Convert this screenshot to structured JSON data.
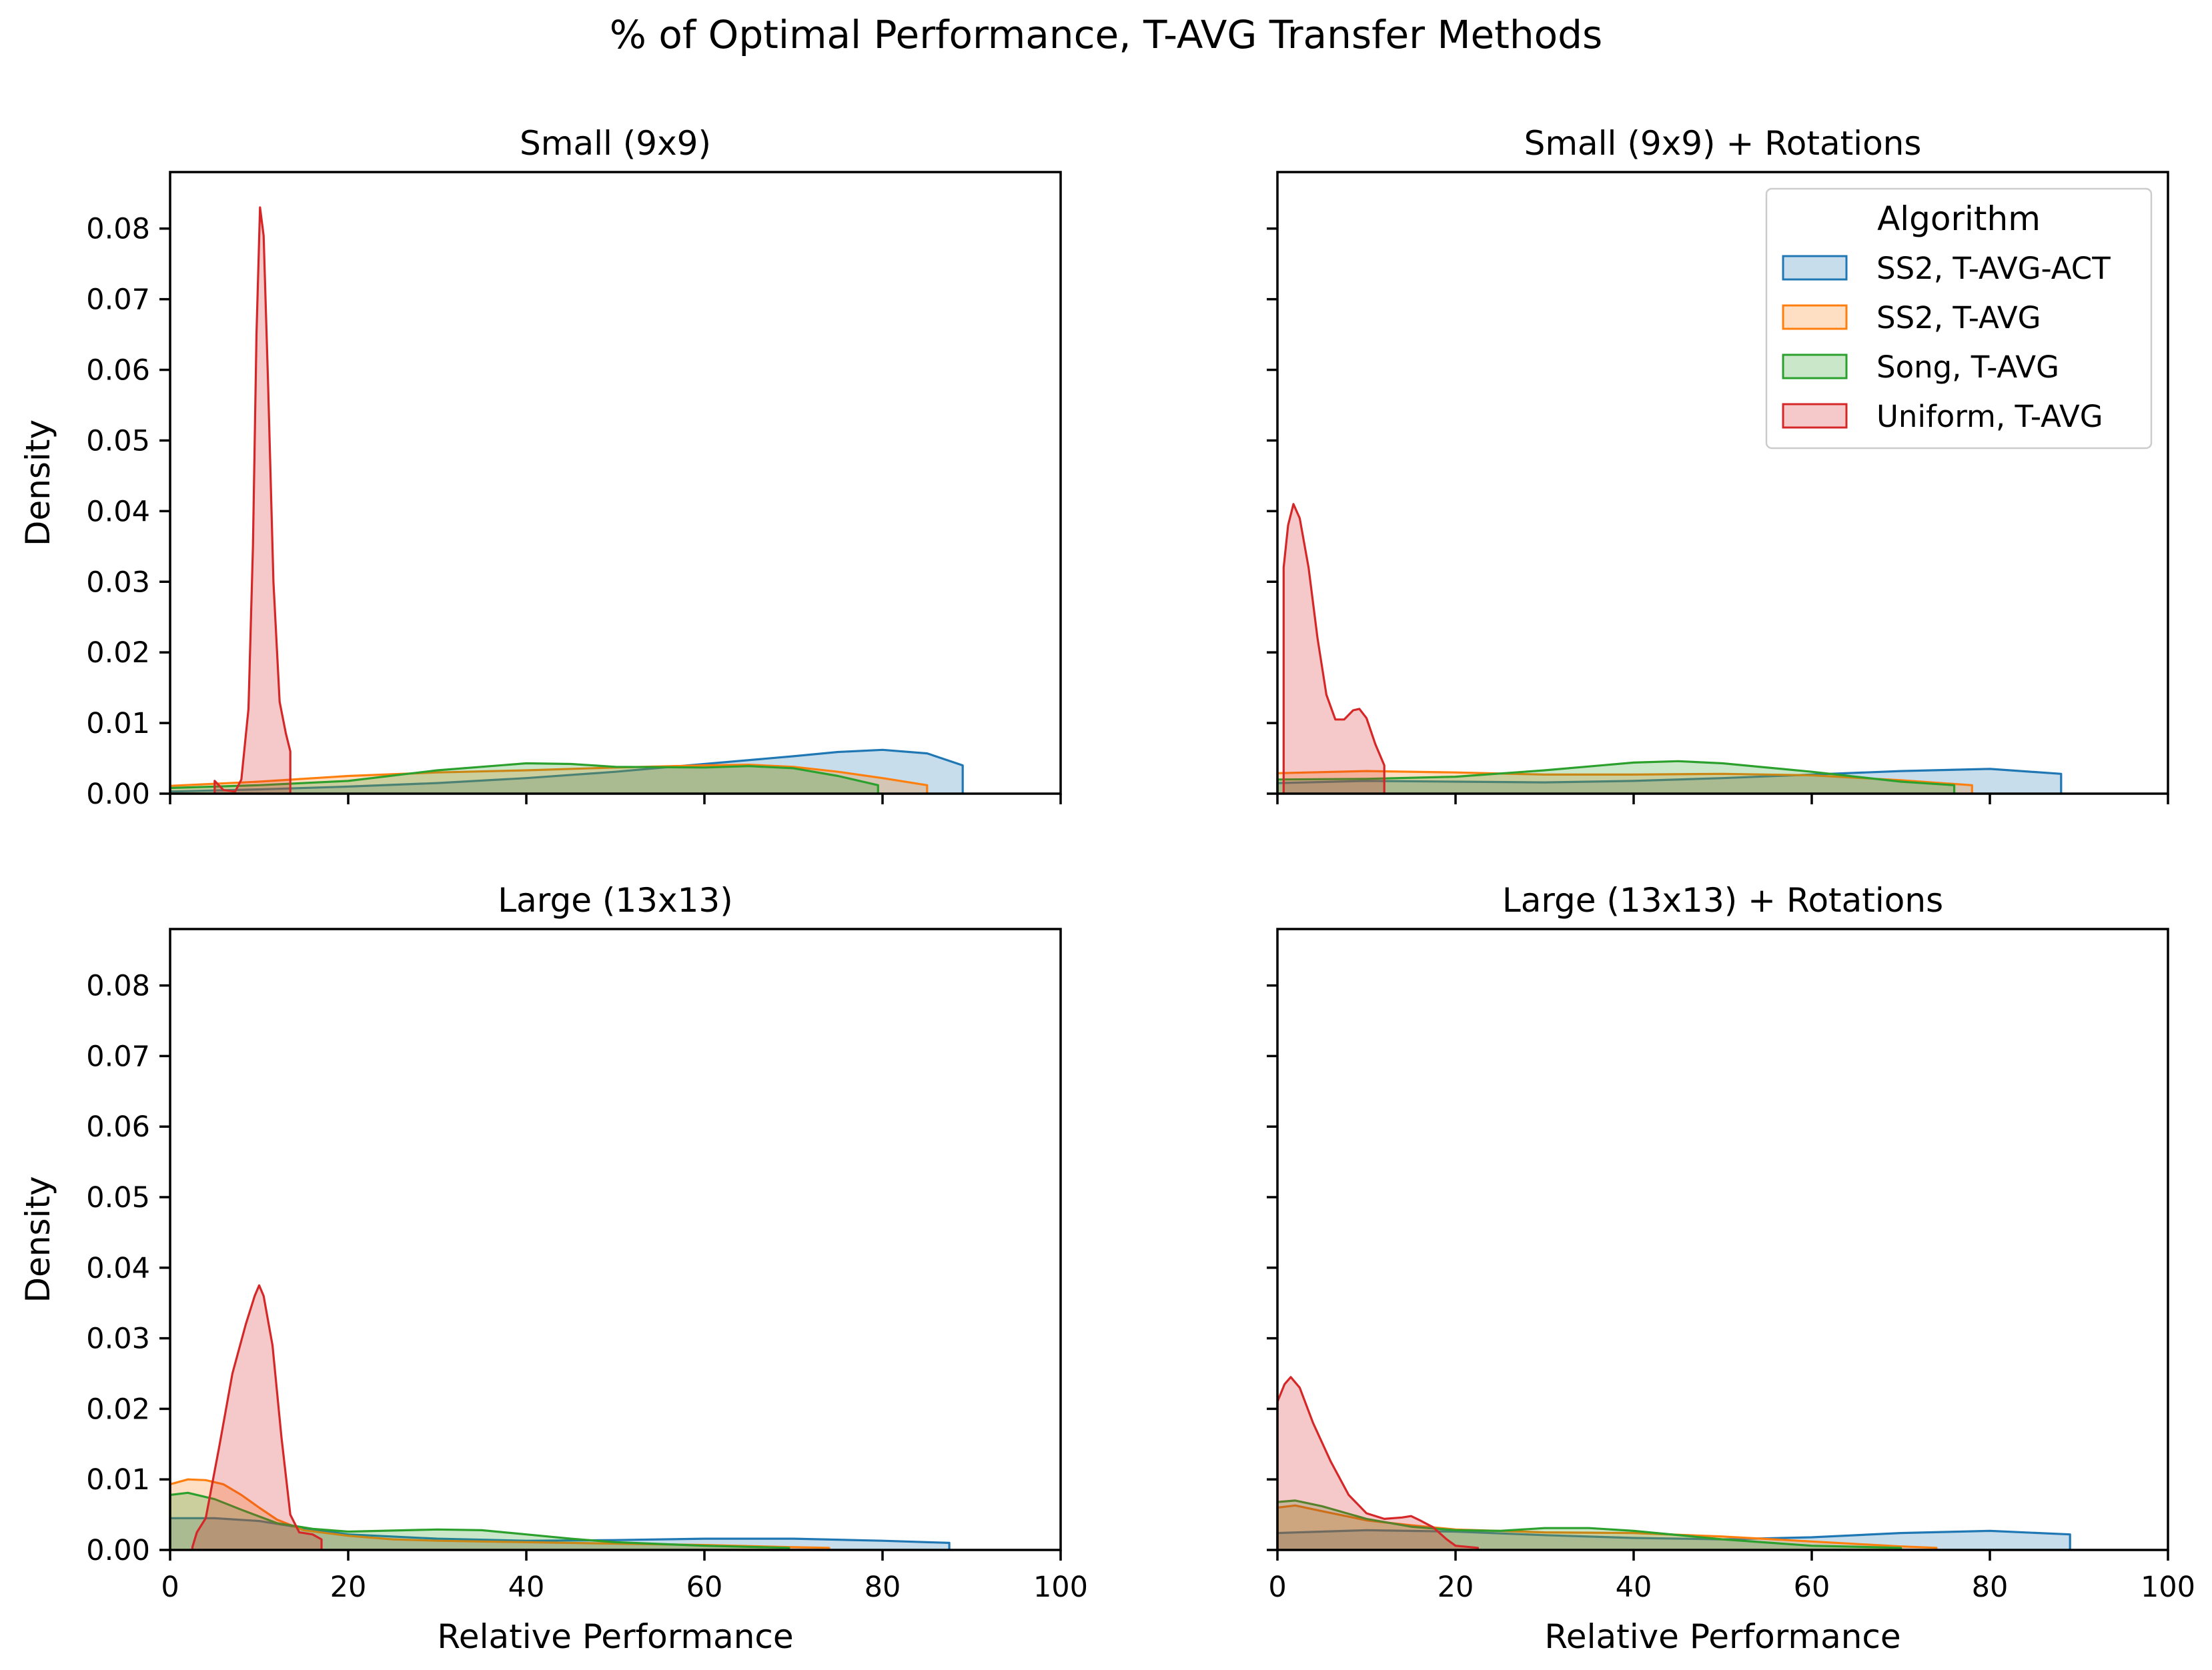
{
  "chart_data": {
    "type": "area",
    "title": "% of Optimal Performance, T-AVG Transfer Methods",
    "xlabel": "Relative Performance",
    "ylabel": "Density",
    "xlim": [
      0,
      100
    ],
    "ylim": [
      0,
      0.088
    ],
    "x_ticks": [
      "0",
      "20",
      "40",
      "60",
      "80",
      "100"
    ],
    "y_ticks": [
      "0.00",
      "0.01",
      "0.02",
      "0.03",
      "0.04",
      "0.05",
      "0.06",
      "0.07",
      "0.08"
    ],
    "grid": false,
    "legend": {
      "title": "Algorithm",
      "placement": "top-right",
      "entries": [
        "SS2, T-AVG-ACT",
        "SS2, T-AVG",
        "Song, T-AVG",
        "Uniform, T-AVG"
      ]
    },
    "colors": {
      "SS2, T-AVG-ACT": "#1f77b4",
      "SS2, T-AVG": "#ff7f0e",
      "Song, T-AVG": "#2ca02c",
      "Uniform, T-AVG": "#d62728"
    },
    "panels": [
      {
        "title": "Small (9x9)",
        "series": [
          {
            "name": "SS2, T-AVG-ACT",
            "points": [
              [
                0,
                0.0003
              ],
              [
                10,
                0.0006
              ],
              [
                20,
                0.001
              ],
              [
                30,
                0.0015
              ],
              [
                40,
                0.0022
              ],
              [
                50,
                0.0031
              ],
              [
                60,
                0.0042
              ],
              [
                70,
                0.0053
              ],
              [
                75,
                0.0059
              ],
              [
                80,
                0.0062
              ],
              [
                85,
                0.0057
              ],
              [
                89,
                0.004
              ]
            ]
          },
          {
            "name": "SS2, T-AVG",
            "points": [
              [
                0,
                0.0011
              ],
              [
                10,
                0.0017
              ],
              [
                20,
                0.0025
              ],
              [
                30,
                0.003
              ],
              [
                40,
                0.0033
              ],
              [
                50,
                0.0037
              ],
              [
                60,
                0.004
              ],
              [
                65,
                0.0041
              ],
              [
                70,
                0.0038
              ],
              [
                75,
                0.0031
              ],
              [
                80,
                0.0022
              ],
              [
                85,
                0.0012
              ]
            ]
          },
          {
            "name": "Song, T-AVG",
            "points": [
              [
                0,
                0.0008
              ],
              [
                10,
                0.0012
              ],
              [
                20,
                0.0018
              ],
              [
                30,
                0.0033
              ],
              [
                40,
                0.0043
              ],
              [
                45,
                0.0042
              ],
              [
                50,
                0.0038
              ],
              [
                60,
                0.0037
              ],
              [
                65,
                0.0039
              ],
              [
                70,
                0.0036
              ],
              [
                75,
                0.0025
              ],
              [
                79.5,
                0.0012
              ]
            ]
          },
          {
            "name": "Uniform, T-AVG",
            "points": [
              [
                5,
                0.0018
              ],
              [
                6,
                0.0005
              ],
              [
                7.3,
                0.0003
              ],
              [
                8,
                0.002
              ],
              [
                8.8,
                0.012
              ],
              [
                9.3,
                0.035
              ],
              [
                9.7,
                0.065
              ],
              [
                10.1,
                0.083
              ],
              [
                10.5,
                0.079
              ],
              [
                11,
                0.058
              ],
              [
                11.6,
                0.03
              ],
              [
                12.3,
                0.013
              ],
              [
                13,
                0.0085
              ],
              [
                13.5,
                0.006
              ]
            ]
          }
        ]
      },
      {
        "title": "Small (9x9) + Rotations",
        "series": [
          {
            "name": "SS2, T-AVG-ACT",
            "points": [
              [
                0,
                0.0015
              ],
              [
                10,
                0.0018
              ],
              [
                20,
                0.0017
              ],
              [
                30,
                0.0016
              ],
              [
                40,
                0.0018
              ],
              [
                50,
                0.0022
              ],
              [
                60,
                0.0027
              ],
              [
                70,
                0.0032
              ],
              [
                80,
                0.0035
              ],
              [
                88,
                0.0028
              ]
            ]
          },
          {
            "name": "SS2, T-AVG",
            "points": [
              [
                0,
                0.0029
              ],
              [
                10,
                0.0032
              ],
              [
                20,
                0.003
              ],
              [
                30,
                0.0027
              ],
              [
                40,
                0.0027
              ],
              [
                50,
                0.0028
              ],
              [
                60,
                0.0026
              ],
              [
                70,
                0.0019
              ],
              [
                78,
                0.0012
              ]
            ]
          },
          {
            "name": "Song, T-AVG",
            "points": [
              [
                0,
                0.002
              ],
              [
                10,
                0.0021
              ],
              [
                20,
                0.0024
              ],
              [
                30,
                0.0033
              ],
              [
                40,
                0.0044
              ],
              [
                45,
                0.0046
              ],
              [
                50,
                0.0043
              ],
              [
                60,
                0.0031
              ],
              [
                70,
                0.0017
              ],
              [
                76,
                0.0012
              ]
            ]
          },
          {
            "name": "Uniform, T-AVG",
            "points": [
              [
                0.7,
                0.032
              ],
              [
                1.2,
                0.038
              ],
              [
                1.8,
                0.041
              ],
              [
                2.5,
                0.039
              ],
              [
                3.5,
                0.032
              ],
              [
                4.5,
                0.022
              ],
              [
                5.5,
                0.014
              ],
              [
                6.5,
                0.0105
              ],
              [
                7.5,
                0.0105
              ],
              [
                8.5,
                0.0118
              ],
              [
                9.2,
                0.012
              ],
              [
                10,
                0.0107
              ],
              [
                11,
                0.007
              ],
              [
                12,
                0.004
              ]
            ]
          }
        ]
      },
      {
        "title": "Large (13x13)",
        "series": [
          {
            "name": "SS2, T-AVG-ACT",
            "points": [
              [
                0,
                0.0045
              ],
              [
                5,
                0.0045
              ],
              [
                10,
                0.0041
              ],
              [
                15,
                0.0031
              ],
              [
                20,
                0.0022
              ],
              [
                30,
                0.0016
              ],
              [
                40,
                0.0013
              ],
              [
                50,
                0.0014
              ],
              [
                60,
                0.0016
              ],
              [
                70,
                0.0016
              ],
              [
                80,
                0.0013
              ],
              [
                87.5,
                0.001
              ]
            ]
          },
          {
            "name": "SS2, T-AVG",
            "points": [
              [
                0,
                0.0093
              ],
              [
                2,
                0.01
              ],
              [
                4,
                0.0099
              ],
              [
                6,
                0.0093
              ],
              [
                8,
                0.0078
              ],
              [
                10,
                0.006
              ],
              [
                12,
                0.0043
              ],
              [
                15,
                0.0028
              ],
              [
                20,
                0.002
              ],
              [
                25,
                0.0015
              ],
              [
                30,
                0.0013
              ],
              [
                40,
                0.0011
              ],
              [
                50,
                0.0009
              ],
              [
                60,
                0.0007
              ],
              [
                70,
                0.0004
              ],
              [
                74,
                0.0003
              ]
            ]
          },
          {
            "name": "Song, T-AVG",
            "points": [
              [
                0,
                0.0078
              ],
              [
                2,
                0.0081
              ],
              [
                5,
                0.0072
              ],
              [
                8,
                0.0057
              ],
              [
                12,
                0.0038
              ],
              [
                16,
                0.003
              ],
              [
                20,
                0.0026
              ],
              [
                30,
                0.0029
              ],
              [
                35,
                0.0028
              ],
              [
                40,
                0.0022
              ],
              [
                45,
                0.0016
              ],
              [
                50,
                0.0011
              ],
              [
                60,
                0.0006
              ],
              [
                69.5,
                0.0003
              ]
            ]
          },
          {
            "name": "Uniform, T-AVG",
            "points": [
              [
                2.5,
                0.0004
              ],
              [
                3,
                0.0025
              ],
              [
                4,
                0.0045
              ],
              [
                5.5,
                0.0145
              ],
              [
                7,
                0.025
              ],
              [
                8.5,
                0.032
              ],
              [
                9.5,
                0.036
              ],
              [
                10,
                0.0375
              ],
              [
                10.5,
                0.036
              ],
              [
                11.5,
                0.029
              ],
              [
                12.5,
                0.016
              ],
              [
                13.5,
                0.005
              ],
              [
                14.5,
                0.0025
              ],
              [
                16,
                0.0022
              ],
              [
                17,
                0.0015
              ]
            ]
          }
        ]
      },
      {
        "title": "Large (13x13) + Rotations",
        "series": [
          {
            "name": "SS2, T-AVG-ACT",
            "points": [
              [
                0,
                0.0024
              ],
              [
                10,
                0.0028
              ],
              [
                20,
                0.0026
              ],
              [
                30,
                0.0021
              ],
              [
                40,
                0.0017
              ],
              [
                50,
                0.0015
              ],
              [
                60,
                0.0018
              ],
              [
                70,
                0.0024
              ],
              [
                80,
                0.0027
              ],
              [
                89,
                0.0022
              ]
            ]
          },
          {
            "name": "SS2, T-AVG",
            "points": [
              [
                0,
                0.006
              ],
              [
                2,
                0.0063
              ],
              [
                5,
                0.0055
              ],
              [
                10,
                0.0042
              ],
              [
                15,
                0.0035
              ],
              [
                20,
                0.0029
              ],
              [
                30,
                0.0025
              ],
              [
                40,
                0.0024
              ],
              [
                50,
                0.0019
              ],
              [
                60,
                0.0012
              ],
              [
                70,
                0.0005
              ],
              [
                74,
                0.0003
              ]
            ]
          },
          {
            "name": "Song, T-AVG",
            "points": [
              [
                0,
                0.0068
              ],
              [
                2,
                0.007
              ],
              [
                5,
                0.0062
              ],
              [
                10,
                0.0044
              ],
              [
                15,
                0.0033
              ],
              [
                20,
                0.0028
              ],
              [
                25,
                0.0027
              ],
              [
                30,
                0.0031
              ],
              [
                35,
                0.0031
              ],
              [
                40,
                0.0027
              ],
              [
                50,
                0.0015
              ],
              [
                60,
                0.0006
              ],
              [
                70,
                0.0003
              ]
            ]
          },
          {
            "name": "Uniform, T-AVG",
            "points": [
              [
                0,
                0.021
              ],
              [
                0.8,
                0.0235
              ],
              [
                1.5,
                0.0245
              ],
              [
                2.5,
                0.023
              ],
              [
                4,
                0.018
              ],
              [
                6,
                0.0125
              ],
              [
                8,
                0.0078
              ],
              [
                10,
                0.0052
              ],
              [
                12,
                0.0044
              ],
              [
                14,
                0.0046
              ],
              [
                15,
                0.0048
              ],
              [
                16,
                0.0042
              ],
              [
                17.5,
                0.0032
              ],
              [
                19,
                0.0015
              ],
              [
                20,
                0.0006
              ],
              [
                22.5,
                0.0003
              ]
            ]
          }
        ]
      }
    ]
  }
}
